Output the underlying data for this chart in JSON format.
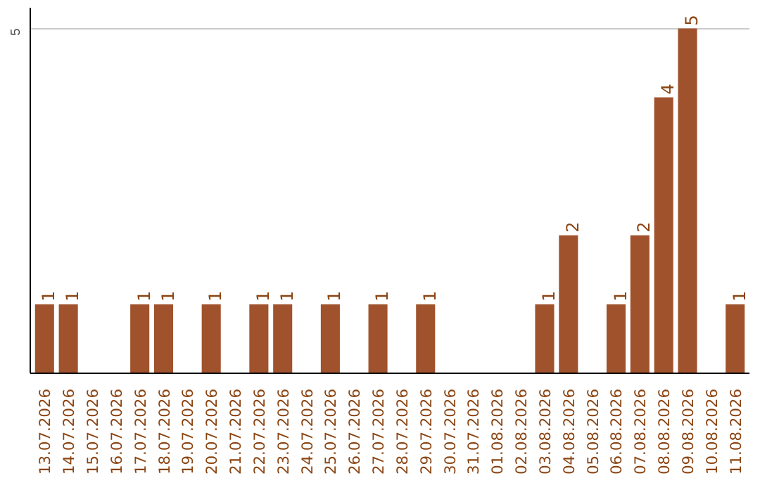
{
  "chart_data": {
    "type": "bar",
    "categories": [
      "13.07.2026",
      "14.07.2026",
      "15.07.2026",
      "16.07.2026",
      "17.07.2026",
      "18.07.2026",
      "19.07.2026",
      "20.07.2026",
      "21.07.2026",
      "22.07.2026",
      "23.07.2026",
      "24.07.2026",
      "25.07.2026",
      "26.07.2026",
      "27.07.2026",
      "28.07.2026",
      "29.07.2026",
      "30.07.2026",
      "31.07.2026",
      "01.08.2026",
      "02.08.2026",
      "03.08.2026",
      "04.08.2026",
      "05.08.2026",
      "06.08.2026",
      "07.08.2026",
      "08.08.2026",
      "09.08.2026",
      "10.08.2026",
      "11.08.2026"
    ],
    "values": [
      1,
      1,
      0,
      0,
      1,
      1,
      0,
      1,
      0,
      1,
      1,
      0,
      1,
      0,
      1,
      0,
      1,
      0,
      0,
      0,
      0,
      1,
      2,
      0,
      1,
      2,
      4,
      5,
      0,
      1
    ],
    "value_labels": [
      "1",
      "1",
      null,
      null,
      "1",
      "1",
      null,
      "1",
      null,
      "1",
      "1",
      null,
      "1",
      null,
      "1",
      null,
      "1",
      null,
      null,
      null,
      null,
      "1",
      "2",
      null,
      "1",
      "2",
      "4",
      "5",
      null,
      "1"
    ],
    "color": "#a0522d",
    "ylim": [
      0,
      5.3
    ],
    "yticks": [
      5
    ],
    "grid": "y"
  }
}
